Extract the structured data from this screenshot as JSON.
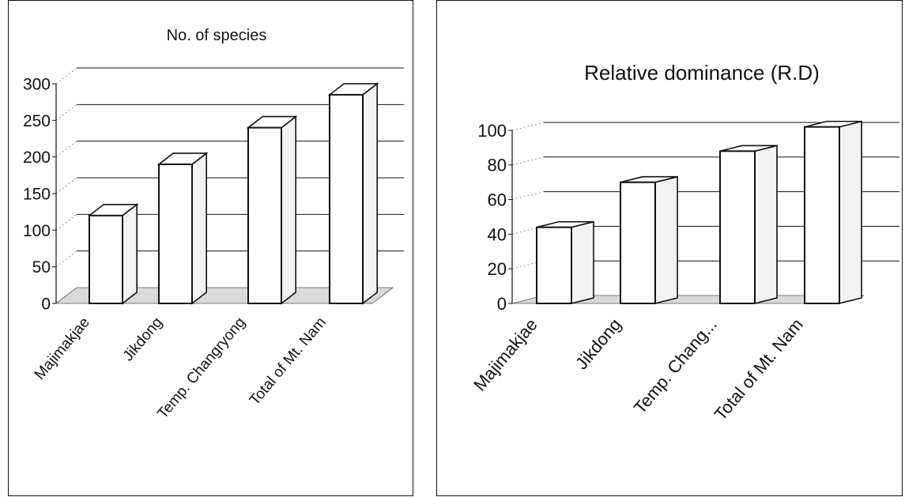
{
  "chart_data": [
    {
      "type": "bar",
      "title": "No. of species",
      "categories": [
        "Majimakjae",
        "Jikdong",
        "Temp. Changryong",
        "Total of Mt. Nam"
      ],
      "values": [
        120,
        190,
        240,
        285
      ],
      "ylim": [
        0,
        300
      ],
      "yticks": [
        "0",
        "50",
        "100",
        "150",
        "200",
        "250",
        "300"
      ],
      "grid": true,
      "style": "3d"
    },
    {
      "type": "bar",
      "title": "Relative dominance (R.D)",
      "categories": [
        "Majimakjae",
        "Jikdong",
        "Temp. Chang...",
        "Total of Mt. Nam"
      ],
      "values": [
        44,
        70,
        88,
        102
      ],
      "ylim": [
        0,
        100
      ],
      "yticks": [
        "0",
        "20",
        "40",
        "60",
        "80",
        "100"
      ],
      "grid": true,
      "style": "3d"
    }
  ]
}
